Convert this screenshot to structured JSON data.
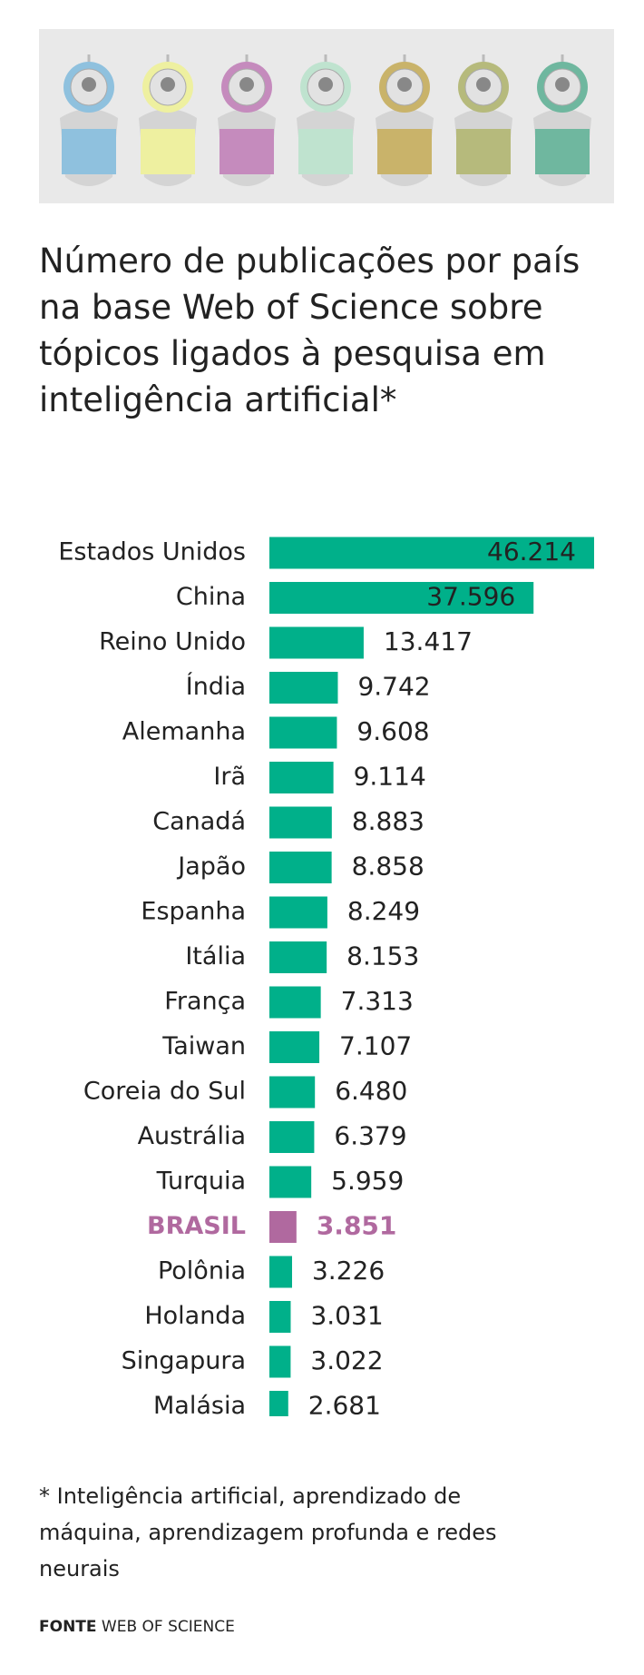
{
  "chart_data": {
    "type": "hbar",
    "title": "Número de publicações por país na base Web of Science sobre tópicos ligados à pesquisa em inteligência artificial*",
    "categories": [
      "Estados Unidos",
      "China",
      "Reino Unido",
      "Índia",
      "Alemanha",
      "Irã",
      "Canadá",
      "Japão",
      "Espanha",
      "Itália",
      "França",
      "Taiwan",
      "Coreia do Sul",
      "Austrália",
      "Turquia",
      "BRASIL",
      "Polônia",
      "Holanda",
      "Singapura",
      "Malásia"
    ],
    "values": [
      46214,
      37596,
      13417,
      9742,
      9608,
      9114,
      8883,
      8858,
      8249,
      8153,
      7313,
      7107,
      6480,
      6379,
      5959,
      3851,
      3226,
      3031,
      3022,
      2681
    ],
    "value_labels": [
      "46.214",
      "37.596",
      "13.417",
      "9.742",
      "9.608",
      "9.114",
      "8.883",
      "8.858",
      "8.249",
      "8.153",
      "7.313",
      "7.107",
      "6.480",
      "6.379",
      "5.959",
      "3.851",
      "3.226",
      "3.031",
      "3.022",
      "2.681"
    ],
    "colors": [
      "#00b08a",
      "#00b08a",
      "#00b08a",
      "#00b08a",
      "#00b08a",
      "#00b08a",
      "#00b08a",
      "#00b08a",
      "#00b08a",
      "#00b08a",
      "#00b08a",
      "#00b08a",
      "#00b08a",
      "#00b08a",
      "#00b08a",
      "#b0699f",
      "#00b08a",
      "#00b08a",
      "#00b08a",
      "#00b08a"
    ],
    "label_colors": [
      "#222",
      "#222",
      "#222",
      "#222",
      "#222",
      "#222",
      "#222",
      "#222",
      "#222",
      "#222",
      "#222",
      "#222",
      "#222",
      "#222",
      "#222",
      "#b0699f",
      "#222",
      "#222",
      "#222",
      "#222"
    ],
    "footnote": "* Inteligência artificial, aprendizado de máquina, aprendizagem profunda e redes neurais",
    "source_label": "FONTE",
    "source": "WEB OF SCIENCE"
  }
}
